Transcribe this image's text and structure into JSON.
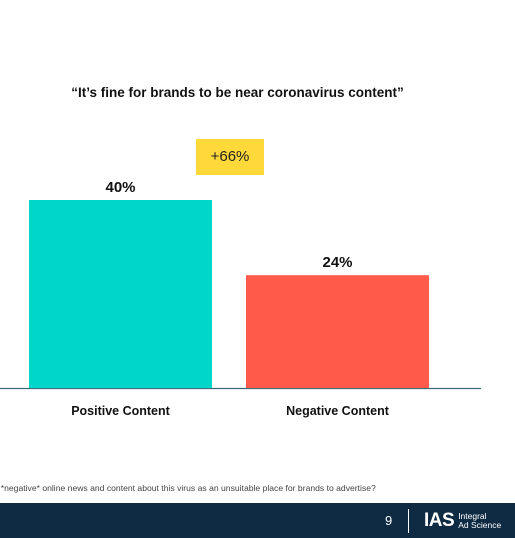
{
  "slide": {
    "callout": "+66%",
    "footnote": "/ *negative*  online news and content about this virus as an unsuitable place for brands to advertise?",
    "page_number": "9",
    "logo": {
      "mark": "IAS",
      "line1": "Integral",
      "line2": "Ad Science"
    }
  },
  "colors": {
    "positive_bar": "#00d6c9",
    "negative_bar": "#ff5a4a",
    "callout_bg": "#ffd83a",
    "footer_bg": "#0f2b44",
    "axis": "#3f6b7a"
  },
  "chart_data": {
    "type": "bar",
    "title": "“It’s fine for brands to be near coronavirus content”",
    "categories": [
      "Positive Content",
      "Negative Content"
    ],
    "values": [
      40,
      24
    ],
    "data_labels": [
      "40%",
      "24%"
    ],
    "ylim": [
      0,
      45
    ],
    "grid": false,
    "legend": "none"
  }
}
